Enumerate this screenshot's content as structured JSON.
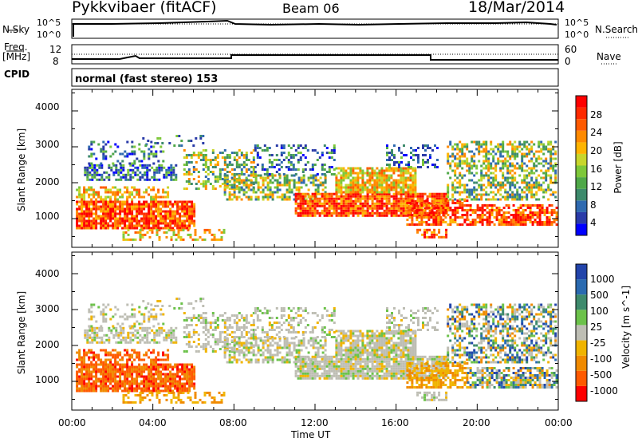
{
  "header": {
    "station": "Pykkvibaer (fitACF)",
    "beam": "Beam 06",
    "date": "18/Mar/2014"
  },
  "top_panels": {
    "nsky_label": "N.Sky",
    "nsky_ticks": [
      "10^5",
      "10^0"
    ],
    "nsearch_label": "N.Search",
    "nsearch_ticks": [
      "10^5",
      "10^0"
    ],
    "freq_label_1": "Freq.",
    "freq_label_2": "[MHz]",
    "freq_ticks": [
      "12",
      "8"
    ],
    "nave_label": "Nave",
    "nave_ticks": [
      "60",
      "0"
    ],
    "cpid_label": "CPID",
    "cpid_value": "normal (fast stereo) 153"
  },
  "chart_data": [
    {
      "type": "heatmap",
      "quantity": "Power",
      "colorbar_label": "Power [dB]",
      "colorbar_ticks": [
        "28",
        "24",
        "20",
        "16",
        "12",
        "8",
        "4"
      ],
      "colorbar_range": [
        0,
        32
      ],
      "ylabel": "Slant Range [km]",
      "y_ticks": [
        "4000",
        "3000",
        "2000",
        "1000"
      ],
      "ylim": [
        200,
        4600
      ],
      "xlim_hours": [
        0,
        24
      ],
      "colors": [
        "#0000ff",
        "#2a3ba8",
        "#2f6ab0",
        "#3d8a6c",
        "#4fa848",
        "#7ec83a",
        "#c8d62c",
        "#ffb400",
        "#ff8a00",
        "#ff5a00",
        "#ff2a00",
        "#ff0000"
      ]
    },
    {
      "type": "heatmap",
      "quantity": "Velocity",
      "colorbar_label": "Velocity [m s^-1]",
      "colorbar_ticks": [
        "1000",
        "500",
        "100",
        "25",
        "-25",
        "-100",
        "-500",
        "-1000"
      ],
      "colorbar_range": [
        -1000,
        1000
      ],
      "ylabel": "Slant Range [km]",
      "y_ticks": [
        "4000",
        "3000",
        "2000",
        "1000"
      ],
      "ylim": [
        200,
        4600
      ],
      "xlim_hours": [
        0,
        24
      ],
      "colors": [
        "#2244aa",
        "#2a6ab0",
        "#3e8a6c",
        "#6cc24a",
        "#bebeb4",
        "#f0b400",
        "#f08a00",
        "#ff5a00",
        "#ff0000"
      ]
    }
  ],
  "x_axis": {
    "ticks": [
      "00:00",
      "04:00",
      "08:00",
      "12:00",
      "16:00",
      "20:00",
      "00:00"
    ],
    "label": "Time UT"
  }
}
